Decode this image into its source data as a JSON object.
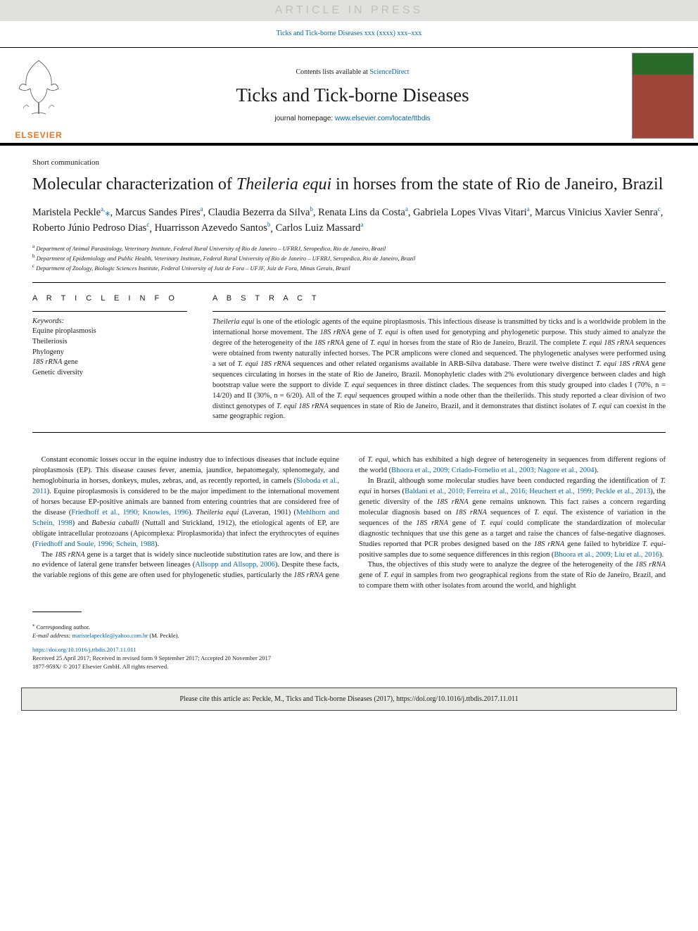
{
  "banner": {
    "text": "ARTICLE IN PRESS"
  },
  "running_head": {
    "text": "Ticks and Tick-borne Diseases xxx (xxxx) xxx–xxx"
  },
  "header": {
    "contents_prefix": "Contents lists available at ",
    "sciencedirect": "ScienceDirect",
    "journal_title": "Ticks and Tick-borne Diseases",
    "homepage_prefix": "journal homepage: ",
    "homepage_url": "www.elsevier.com/locate/ttbdis",
    "publisher": "ELSEVIER"
  },
  "article": {
    "type": "Short communication",
    "title_pre": "Molecular characterization of ",
    "title_italic": "Theileria equi",
    "title_post": " in horses from the state of Rio de Janeiro, Brazil"
  },
  "authors": [
    {
      "name": "Maristela Peckle",
      "aff": "a,",
      "star": "⁎"
    },
    {
      "name": "Marcus Sandes Pires",
      "aff": "a"
    },
    {
      "name": "Claudia Bezerra da Silva",
      "aff": "b"
    },
    {
      "name": "Renata Lins da Costa",
      "aff": "a"
    },
    {
      "name": "Gabriela Lopes Vivas Vitari",
      "aff": "a"
    },
    {
      "name": "Marcus Vinicius Xavier Senra",
      "aff": "c"
    },
    {
      "name": "Roberto Júnio Pedroso Dias",
      "aff": "c"
    },
    {
      "name": "Huarrisson Azevedo Santos",
      "aff": "b"
    },
    {
      "name": "Carlos Luiz Massard",
      "aff": "a"
    }
  ],
  "affiliations": [
    {
      "sup": "a",
      "text": "Department of Animal Parasitology, Veterinary Institute, Federal Rural University of Rio de Janeiro – UFRRJ, Seropedica, Rio de Janeiro, Brazil"
    },
    {
      "sup": "b",
      "text": "Department of Epidemiology and Public Health, Veterinary Institute, Federal Rural University of Rio de Janeiro – UFRRJ, Seropedica, Rio de Janeiro, Brazil"
    },
    {
      "sup": "c",
      "text": "Department of Zoology, Biologic Sciences Institute, Federal University of Juiz de Fora – UFJF, Juiz de Fora, Minas Gerais, Brazil"
    }
  ],
  "info_heading": "A R T I C L E  I N F O",
  "abstract_heading": "A B S T R A C T",
  "keywords_label": "Keywords:",
  "keywords": [
    "Equine piroplasmosis",
    "Theileriosis",
    "Phylogeny",
    "<i>18S rRNA</i> gene",
    "Genetic diversity"
  ],
  "abstract_html": "<span class=\"italic\">Theileria equi</span> is one of the etiologic agents of the equine piroplasmosis. This infectious disease is transmitted by ticks and is a worldwide problem in the international horse movement. The <span class=\"italic\">18S rRNA</span> gene of <span class=\"italic\">T. equi</span> is often used for genotyping and phylogenetic purpose. This study aimed to analyze the degree of the heterogeneity of the <span class=\"italic\">18S rRNA</span> gene of <span class=\"italic\">T. equi</span> in horses from the state of Rio de Janeiro, Brazil. The complete <span class=\"italic\">T. equi 18S rRNA</span> sequences were obtained from twenty naturally infected horses. The PCR amplicons were cloned and sequenced. The phylogenetic analyses were performed using a set of <span class=\"italic\">T. equi 18S rRNA</span> sequences and other related organisms available in ARB-Silva database. There were twelve distinct <span class=\"italic\">T. equi 18S rRNA</span> gene sequences circulating in horses in the state of Rio de Janeiro, Brazil. Monophyletic clades with 2% evolutionary divergence between clades and high bootstrap value were the support to divide <span class=\"italic\">T. equi</span> sequences in three distinct clades. The sequences from this study grouped into clades I (70%, n = 14/20) and II (30%, n = 6/20). All of the <span class=\"italic\">T. equi</span> sequences grouped within a node other than the theileriids. This study reported a clear division of two distinct genotypes of <span class=\"italic\">T. equi 18S rRNA</span> sequences in state of Rio de Janeiro, Brazil, and it demonstrates that distinct isolates of <span class=\"italic\">T. equi</span> can coexist in the same geographic region.",
  "body_paragraphs": [
    "Constant economic losses occur in the equine industry due to infectious diseases that include equine piroplasmosis (EP). This disease causes fever, anemia, jaundice, hepatomegaly, splenomegaly, and hemoglobinuria in horses, donkeys, mules, zebras, and, as recently reported, in camels (<span class=\"ref-link\">Sloboda et al., 2011</span>). Equine piroplasmosis is considered to be the major impediment to the international movement of horses because EP-positive animals are banned from entering countries that are considered free of the disease (<span class=\"ref-link\">Friedhoff et al., 1990; Knowles, 1996</span>). <span class=\"italic\">Theileria equi</span> (Laveran, 1901) (<span class=\"ref-link\">Mehlhorn and Schein, 1998</span>) and <span class=\"italic\">Babesia caballi</span> (Nuttall and Strickland, 1912), the etiological agents of EP, are obligate intracellular protozoans (Apicomplexa: Piroplasmorida) that infect the erythrocytes of equines (<span class=\"ref-link\">Friedhoff and Soule, 1996; Schein, 1988</span>).",
    "The <span class=\"italic\">18S rRNA</span> gene is a target that is widely since nucleotide substitution rates are low, and there is no evidence of lateral gene transfer between lineages (<span class=\"ref-link\">Allsopp and Allsopp, 2006</span>). Despite these facts, the variable regions of this gene are often used for phylogenetic studies, particularly the <span class=\"italic\">18S rRNA</span> gene of <span class=\"italic\">T. equi</span>, which has exhibited a high degree of heterogeneity in sequences from different regions of the world (<span class=\"ref-link\">Bhoora et al., 2009; Criado-Fornelio et al., 2003; Nagore et al., 2004</span>).",
    "In Brazil, although some molecular studies have been conducted regarding the identification of <span class=\"italic\">T. equi</span> in horses (<span class=\"ref-link\">Baldani et al., 2010; Ferreira et al., 2016; Heuchert et al., 1999; Peckle et al., 2013</span>), the genetic diversity of the <span class=\"italic\">18S rRNA</span> gene remains unknown. This fact raises a concern regarding molecular diagnosis based on <span class=\"italic\">18S rRNA</span> sequences of <span class=\"italic\">T. equi</span>. The existence of variation in the sequences of the <span class=\"italic\">18S rRNA</span> gene of <span class=\"italic\">T. equi</span> could complicate the standardization of molecular diagnostic techniques that use this gene as a target and raise the chances of false-negative diagnoses. Studies reported that PCR probes designed based on the <span class=\"italic\">18S rRNA</span> gene failed to hybridize <span class=\"italic\">T. equi</span>-positive samples due to some sequence differences in this region (<span class=\"ref-link\">Bhoora et al., 2009; Liu et al., 2016</span>).",
    "Thus, the objectives of this study were to analyze the degree of the heterogeneity of the <span class=\"italic\">18S rRNA</span> gene of <span class=\"italic\">T. equi</span> in samples from two geographical regions from the state of Rio de Janeiro, Brazil, and to compare them with other isolates from around the world, and highlight"
  ],
  "footnotes": {
    "corresponding": "Corresponding author.",
    "email_label": "E-mail address:",
    "email": "maristelapeckle@yahoo.com.br",
    "email_suffix": "(M. Peckle)."
  },
  "doi": {
    "url": "https://doi.org/10.1016/j.ttbdis.2017.11.011",
    "received": "Received 25 April 2017; Received in revised form 9 September 2017; Accepted 20 November 2017",
    "issn_copyright": "1877-959X/ © 2017 Elsevier GmbH. All rights reserved."
  },
  "citation_box": "Please cite this article as: Peckle, M., Ticks and Tick-borne Diseases (2017), https://doi.org/10.1016/j.ttbdis.2017.11.011"
}
